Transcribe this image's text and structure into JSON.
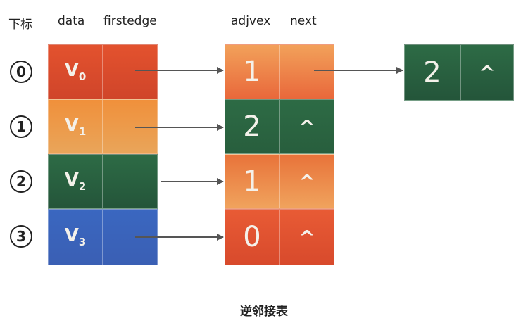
{
  "headers": {
    "index": "下标",
    "data": "data",
    "firstedge": "firstedge",
    "adjvex": "adjvex",
    "next": "next"
  },
  "vertices": [
    {
      "index": "0",
      "data": "V",
      "sub": "0",
      "color": "#d9492b"
    },
    {
      "index": "1",
      "data": "V",
      "sub": "1",
      "color": "#ee9a4a"
    },
    {
      "index": "2",
      "data": "V",
      "sub": "2",
      "color": "#2a6140"
    },
    {
      "index": "3",
      "data": "V",
      "sub": "3",
      "color": "#3a63b8"
    }
  ],
  "edge_nodes": [
    {
      "adjvex": "1",
      "next": ""
    },
    {
      "adjvex": "2",
      "next": "^"
    },
    {
      "adjvex": "1",
      "next": "^"
    },
    {
      "adjvex": "0",
      "next": "^"
    }
  ],
  "extra_node": {
    "adjvex": "2",
    "next": "^"
  },
  "caption": "逆邻接表"
}
